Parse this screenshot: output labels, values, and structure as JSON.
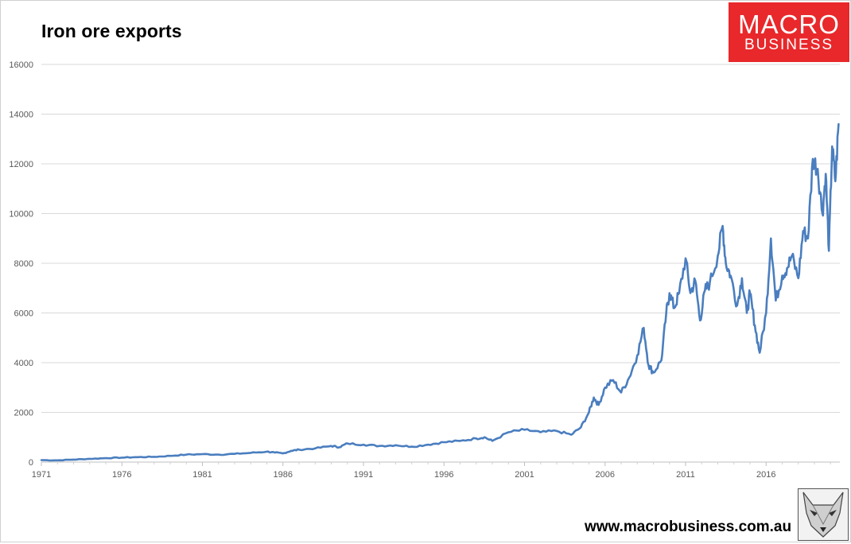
{
  "header": {
    "title": "Iron ore exports"
  },
  "logo": {
    "line1": "MACRO",
    "line2": "BUSINESS"
  },
  "footer": {
    "url": "www.macrobusiness.com.au"
  },
  "colors": {
    "line": "#4a7ebf",
    "grid": "#d9d9d9",
    "logo_bg": "#e8282b",
    "axis_text": "#595959"
  },
  "chart_data": {
    "type": "line",
    "title": "Iron ore exports",
    "xlabel": "",
    "ylabel": "",
    "xlim": [
      1971,
      2020.58
    ],
    "ylim": [
      0,
      16000
    ],
    "yticks": [
      0,
      2000,
      4000,
      6000,
      8000,
      10000,
      12000,
      14000,
      16000
    ],
    "xticks": [
      "1971",
      "1976",
      "1981",
      "1986",
      "1991",
      "1996",
      "2001",
      "2006",
      "2011",
      "2016"
    ],
    "grid": true,
    "legend": "none",
    "series": [
      {
        "name": "Iron ore exports",
        "x": [
          1971.0,
          1972.0,
          1973.0,
          1974.0,
          1975.0,
          1976.0,
          1977.0,
          1978.0,
          1979.0,
          1980.0,
          1981.0,
          1982.0,
          1983.0,
          1984.0,
          1985.0,
          1985.5,
          1986.0,
          1986.5,
          1987.0,
          1988.0,
          1989.0,
          1989.5,
          1990.0,
          1991.0,
          1992.0,
          1993.0,
          1994.0,
          1995.0,
          1996.0,
          1997.0,
          1998.0,
          1998.5,
          1999.0,
          2000.0,
          2001.0,
          2002.0,
          2003.0,
          2003.9,
          2004.5,
          2005.0,
          2005.3,
          2005.6,
          2006.0,
          2006.5,
          2007.0,
          2007.5,
          2008.0,
          2008.4,
          2008.7,
          2009.0,
          2009.5,
          2009.8,
          2010.0,
          2010.3,
          2010.6,
          2011.0,
          2011.3,
          2011.6,
          2011.9,
          2012.2,
          2012.5,
          2013.0,
          2013.3,
          2013.5,
          2013.8,
          2014.2,
          2014.5,
          2014.8,
          2015.0,
          2015.3,
          2015.6,
          2016.0,
          2016.3,
          2016.6,
          2017.0,
          2017.3,
          2017.6,
          2018.0,
          2018.3,
          2018.6,
          2018.9,
          2019.2,
          2019.5,
          2019.7,
          2019.9,
          2020.1,
          2020.3,
          2020.5
        ],
        "values": [
          80,
          70,
          100,
          130,
          160,
          180,
          200,
          210,
          250,
          300,
          320,
          300,
          330,
          370,
          420,
          380,
          350,
          450,
          500,
          550,
          650,
          600,
          750,
          700,
          650,
          680,
          620,
          700,
          800,
          850,
          950,
          1000,
          850,
          1200,
          1300,
          1200,
          1250,
          1100,
          1400,
          2000,
          2600,
          2300,
          3000,
          3300,
          2800,
          3400,
          4300,
          5400,
          3900,
          3600,
          4100,
          6000,
          6800,
          6200,
          6800,
          8200,
          6800,
          7300,
          5700,
          6900,
          7200,
          8300,
          9500,
          8000,
          7500,
          6300,
          7400,
          6000,
          6800,
          5500,
          4400,
          6000,
          9000,
          6500,
          7500,
          7800,
          8300,
          7400,
          9300,
          9000,
          12200,
          11800,
          10000,
          11600,
          8500,
          12700,
          11300,
          13600
        ]
      }
    ]
  }
}
